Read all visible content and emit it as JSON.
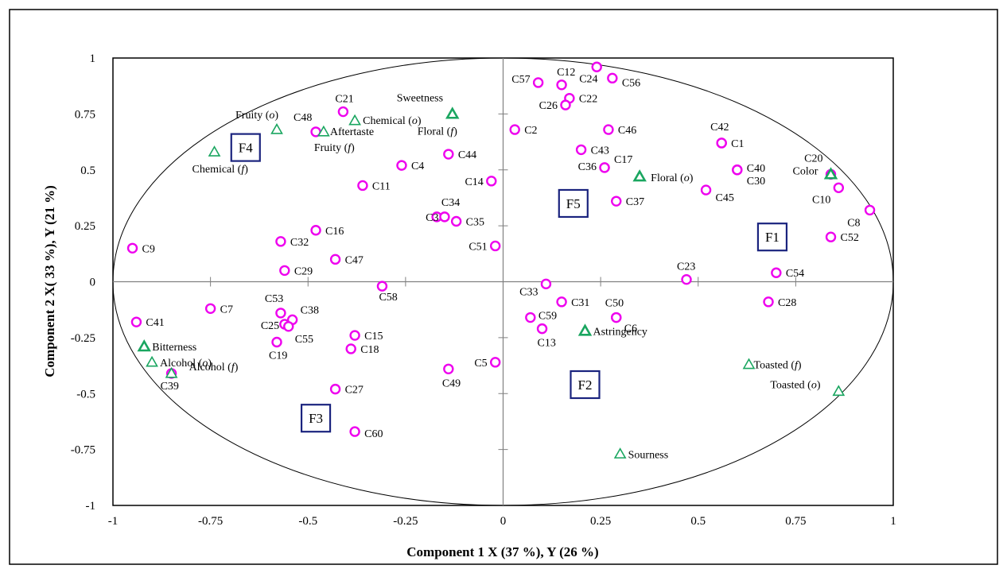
{
  "chart_data": {
    "type": "scatter",
    "xlabel": "Component 1 X (37 %), Y (26 %)",
    "ylabel": "Component 2 X( 33 %), Y (21 %)",
    "xlim": [
      -1,
      1
    ],
    "ylim": [
      -1,
      1
    ],
    "x_ticks": [
      "-1",
      "-0.75",
      "-0.5",
      "-0.25",
      "0",
      "0.25",
      "0.5",
      "0.75",
      "1"
    ],
    "y_ticks": [
      "1",
      "0.75",
      "0.5",
      "0.25",
      "0",
      "-0.25",
      "-0.5",
      "-0.75",
      "-1"
    ],
    "unit_circle": true,
    "colors": {
      "x_points": "#ee00ee",
      "y_points": "#1aa660",
      "factor_box": "#1a237e"
    },
    "x_points": [
      {
        "label": "C1",
        "x": 0.56,
        "y": 0.62
      },
      {
        "label": "C2",
        "x": 0.03,
        "y": 0.68
      },
      {
        "label": "C3",
        "x": -0.17,
        "y": 0.29
      },
      {
        "label": "C4",
        "x": -0.26,
        "y": 0.52
      },
      {
        "label": "C5",
        "x": -0.02,
        "y": -0.36
      },
      {
        "label": "C6",
        "x": 0.29,
        "y": -0.16
      },
      {
        "label": "C7",
        "x": -0.75,
        "y": -0.12
      },
      {
        "label": "C8",
        "x": 0.94,
        "y": 0.32
      },
      {
        "label": "C9",
        "x": -0.95,
        "y": 0.15
      },
      {
        "label": "C10",
        "x": 0.86,
        "y": 0.42
      },
      {
        "label": "C11",
        "x": -0.36,
        "y": 0.43
      },
      {
        "label": "C12",
        "x": 0.15,
        "y": 0.88
      },
      {
        "label": "C13",
        "x": 0.1,
        "y": -0.21
      },
      {
        "label": "C14",
        "x": -0.03,
        "y": 0.45
      },
      {
        "label": "C15",
        "x": -0.38,
        "y": -0.24
      },
      {
        "label": "C16",
        "x": -0.48,
        "y": 0.23
      },
      {
        "label": "C17",
        "x": 0.26,
        "y": 0.51
      },
      {
        "label": "C18",
        "x": -0.39,
        "y": -0.3
      },
      {
        "label": "C19",
        "x": -0.58,
        "y": -0.27
      },
      {
        "label": "C20",
        "x": 0.84,
        "y": 0.48
      },
      {
        "label": "C21",
        "x": -0.41,
        "y": 0.76
      },
      {
        "label": "C22",
        "x": 0.17,
        "y": 0.82
      },
      {
        "label": "C23",
        "x": 0.47,
        "y": 0.01
      },
      {
        "label": "C24",
        "x": 0.24,
        "y": 0.96
      },
      {
        "label": "C25",
        "x": -0.56,
        "y": -0.19
      },
      {
        "label": "C26",
        "x": 0.16,
        "y": 0.79
      },
      {
        "label": "C27",
        "x": -0.43,
        "y": -0.48
      },
      {
        "label": "C28",
        "x": 0.68,
        "y": -0.09
      },
      {
        "label": "C29",
        "x": -0.56,
        "y": 0.05
      },
      {
        "label": "C30",
        "x": 0.6,
        "y": 0.5
      },
      {
        "label": "C31",
        "x": 0.15,
        "y": -0.09
      },
      {
        "label": "C32",
        "x": -0.57,
        "y": 0.18
      },
      {
        "label": "C33",
        "x": 0.11,
        "y": -0.01
      },
      {
        "label": "C34",
        "x": -0.15,
        "y": 0.29
      },
      {
        "label": "C35",
        "x": -0.12,
        "y": 0.27
      },
      {
        "label": "C36",
        "x": 0.26,
        "y": 0.51
      },
      {
        "label": "C37",
        "x": 0.29,
        "y": 0.36
      },
      {
        "label": "C38",
        "x": -0.54,
        "y": -0.17
      },
      {
        "label": "C39",
        "x": -0.85,
        "y": -0.41
      },
      {
        "label": "C40",
        "x": 0.6,
        "y": 0.5
      },
      {
        "label": "C41",
        "x": -0.94,
        "y": -0.18
      },
      {
        "label": "C42",
        "x": 0.56,
        "y": 0.62
      },
      {
        "label": "C43",
        "x": 0.2,
        "y": 0.59
      },
      {
        "label": "C44",
        "x": -0.14,
        "y": 0.57
      },
      {
        "label": "C45",
        "x": 0.52,
        "y": 0.41
      },
      {
        "label": "C46",
        "x": 0.27,
        "y": 0.68
      },
      {
        "label": "C47",
        "x": -0.43,
        "y": 0.1
      },
      {
        "label": "C48",
        "x": -0.48,
        "y": 0.67
      },
      {
        "label": "C49",
        "x": -0.14,
        "y": -0.39
      },
      {
        "label": "C50",
        "x": 0.29,
        "y": -0.16
      },
      {
        "label": "C51",
        "x": -0.02,
        "y": 0.16
      },
      {
        "label": "C52",
        "x": 0.84,
        "y": 0.2
      },
      {
        "label": "C53",
        "x": -0.57,
        "y": -0.14
      },
      {
        "label": "C54",
        "x": 0.7,
        "y": 0.04
      },
      {
        "label": "C55",
        "x": -0.55,
        "y": -0.2
      },
      {
        "label": "C56",
        "x": 0.28,
        "y": 0.91
      },
      {
        "label": "C57",
        "x": 0.09,
        "y": 0.89
      },
      {
        "label": "C58",
        "x": -0.31,
        "y": -0.02
      },
      {
        "label": "C59",
        "x": 0.07,
        "y": -0.16
      },
      {
        "label": "C60",
        "x": -0.38,
        "y": -0.67
      }
    ],
    "y_points": [
      {
        "label": "Sweetness",
        "x": -0.13,
        "y": 0.75,
        "filled": true
      },
      {
        "label": "Floral (f)",
        "x": -0.13,
        "y": 0.75,
        "filled": true
      },
      {
        "label": "Chemical (o)",
        "x": -0.38,
        "y": 0.72,
        "filled": false
      },
      {
        "label": "Fruity (o)",
        "x": -0.58,
        "y": 0.68,
        "filled": false
      },
      {
        "label": "Aftertaste",
        "x": -0.46,
        "y": 0.67,
        "filled": false
      },
      {
        "label": "Fruity (f)",
        "x": -0.46,
        "y": 0.67,
        "filled": false
      },
      {
        "label": "Chemical (f)",
        "x": -0.74,
        "y": 0.58,
        "filled": false
      },
      {
        "label": "Floral (o)",
        "x": 0.35,
        "y": 0.47,
        "filled": true
      },
      {
        "label": "Color",
        "x": 0.84,
        "y": 0.48,
        "filled": true
      },
      {
        "label": "Bitterness",
        "x": -0.92,
        "y": -0.29,
        "filled": true
      },
      {
        "label": "Alcohol (o)",
        "x": -0.9,
        "y": -0.36,
        "filled": false
      },
      {
        "label": "Alcohol (f)",
        "x": -0.85,
        "y": -0.41,
        "filled": false
      },
      {
        "label": "Astringency",
        "x": 0.21,
        "y": -0.22,
        "filled": true
      },
      {
        "label": "Toasted (f)",
        "x": 0.63,
        "y": -0.37,
        "filled": false
      },
      {
        "label": "Toasted (o)",
        "x": 0.86,
        "y": -0.49,
        "filled": false
      },
      {
        "label": "Sourness",
        "x": 0.3,
        "y": -0.77,
        "filled": false
      }
    ],
    "factors": [
      {
        "label": "F1",
        "x": 0.69,
        "y": 0.2
      },
      {
        "label": "F2",
        "x": 0.21,
        "y": -0.46
      },
      {
        "label": "F3",
        "x": -0.48,
        "y": -0.61
      },
      {
        "label": "F4",
        "x": -0.66,
        "y": 0.6
      },
      {
        "label": "F5",
        "x": 0.18,
        "y": 0.35
      }
    ]
  }
}
